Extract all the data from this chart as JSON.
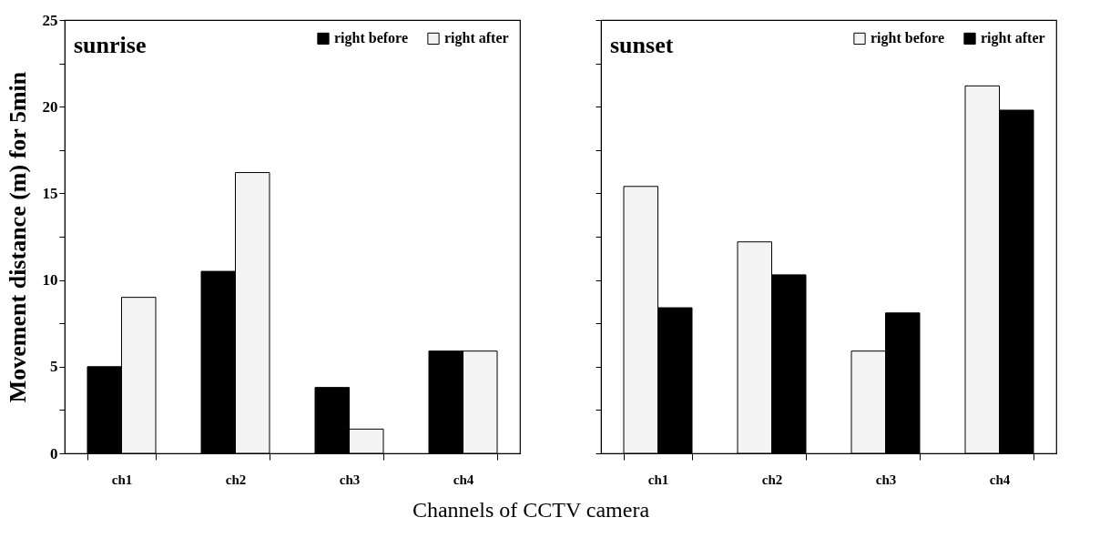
{
  "chart_data": [
    {
      "type": "bar",
      "title": "sunrise",
      "ylabel": "Movement distance (m) for 5min",
      "xlabel": "Channels of CCTV camera",
      "categories": [
        "ch1",
        "ch2",
        "ch3",
        "ch4"
      ],
      "series": [
        {
          "name": "right before",
          "color": "#000000",
          "values": [
            5.0,
            10.5,
            3.8,
            5.9
          ]
        },
        {
          "name": "right after",
          "color": "#f4f4f4",
          "values": [
            9.0,
            16.2,
            1.4,
            5.9
          ]
        }
      ],
      "ylim": [
        0,
        25
      ],
      "yticks": [
        0,
        {
          "value": 2.5,
          "label": null
        },
        5,
        {
          "value": 7.5,
          "label": null
        },
        10,
        {
          "value": 12.5,
          "label": null
        },
        15,
        {
          "value": 17.5,
          "label": null
        },
        20,
        {
          "value": 22.5,
          "label": null
        },
        25
      ],
      "grid": false,
      "legend": "top right"
    },
    {
      "type": "bar",
      "title": "sunset",
      "categories": [
        "ch1",
        "ch2",
        "ch3",
        "ch4"
      ],
      "series": [
        {
          "name": "right before",
          "color": "#f4f4f4",
          "values": [
            15.4,
            12.2,
            5.9,
            21.2
          ]
        },
        {
          "name": "right after",
          "color": "#000000",
          "values": [
            8.4,
            10.3,
            8.1,
            19.8
          ]
        }
      ],
      "ylim": [
        0,
        25
      ],
      "yticks": [
        0,
        {
          "value": 2.5,
          "label": null
        },
        {
          "value": 5,
          "label": null
        },
        {
          "value": 7.5,
          "label": null
        },
        {
          "value": 10,
          "label": null
        },
        {
          "value": 12.5,
          "label": null
        },
        {
          "value": 15,
          "label": null
        },
        {
          "value": 17.5,
          "label": null
        },
        {
          "value": 20,
          "label": null
        },
        {
          "value": 22.5,
          "label": null
        },
        {
          "value": 25,
          "label": null
        }
      ],
      "tick_labels": "x",
      "grid": false,
      "legend": "top right"
    }
  ]
}
